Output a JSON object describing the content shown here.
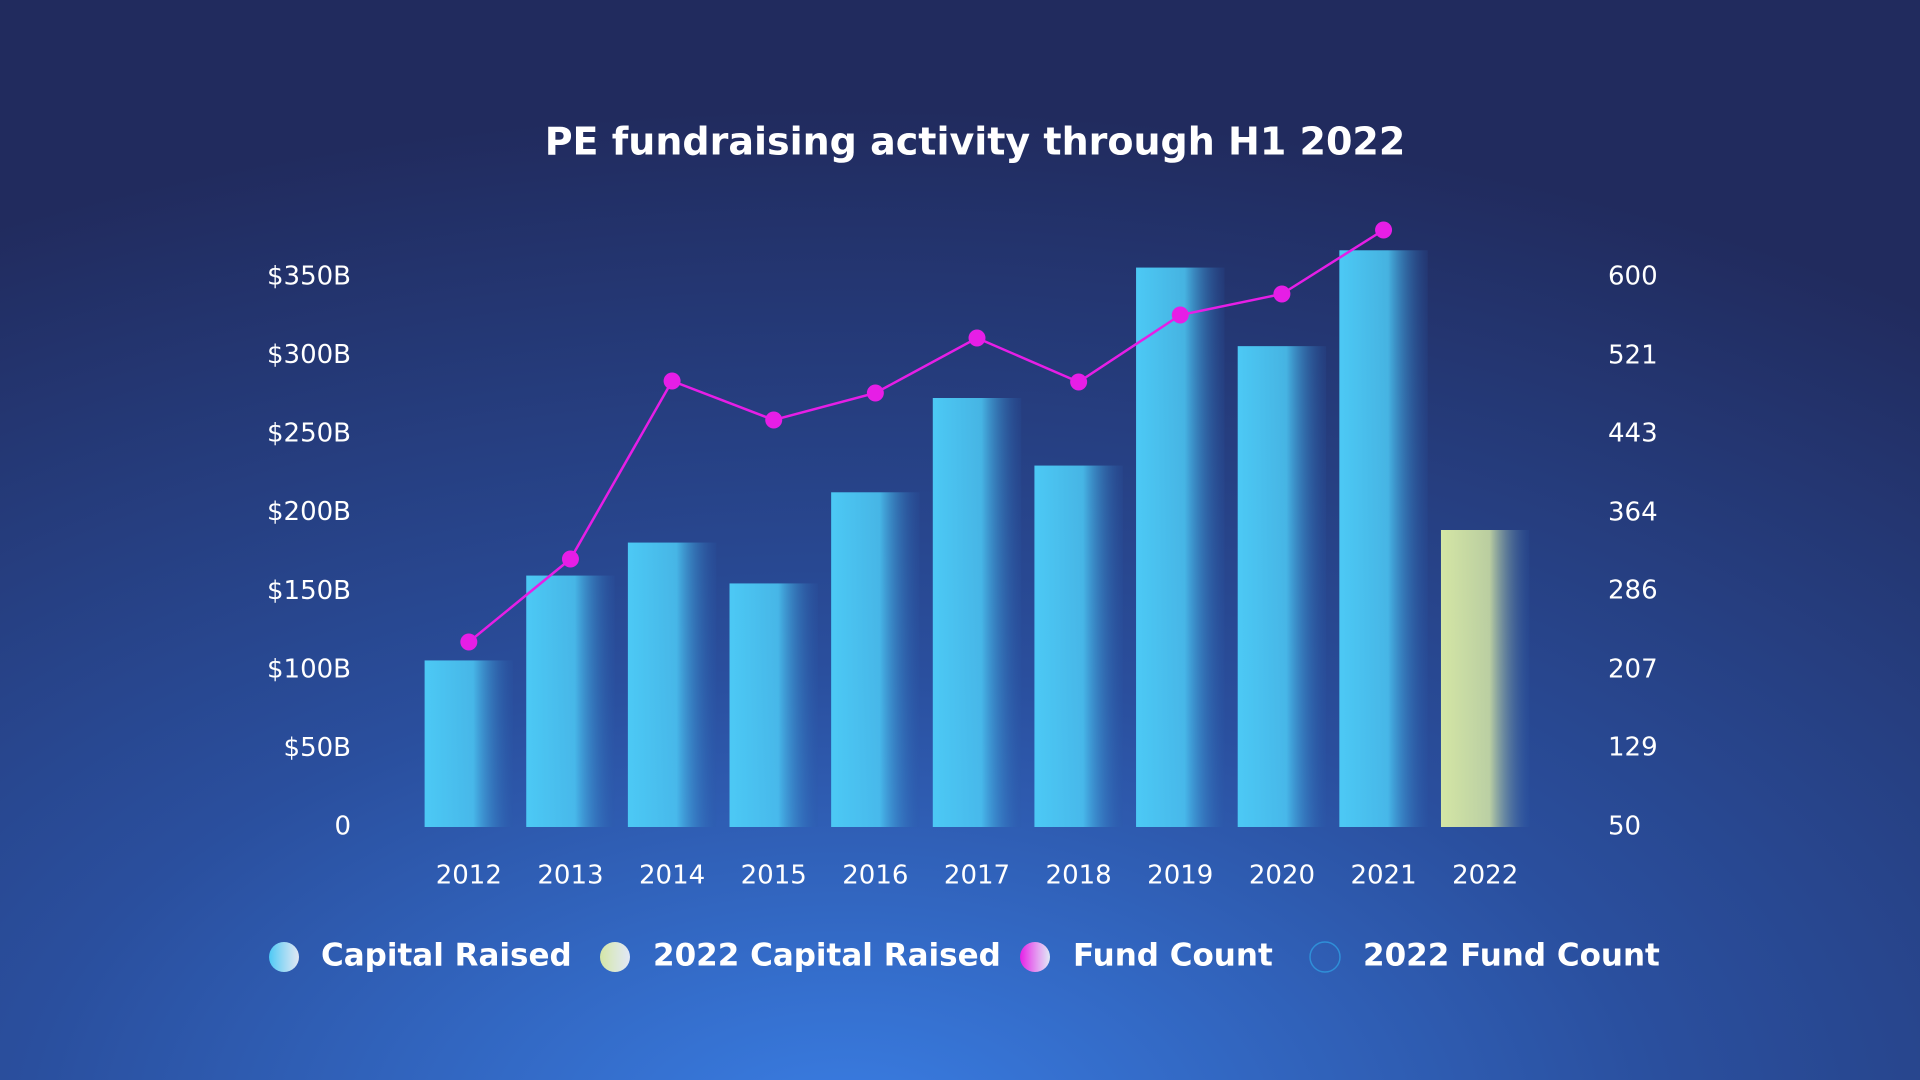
{
  "chart_data": {
    "type": "bar",
    "title": "PE fundraising activity through H1 2022",
    "categories": [
      "2012",
      "2013",
      "2014",
      "2015",
      "2016",
      "2017",
      "2018",
      "2019",
      "2020",
      "2021",
      "2022"
    ],
    "series": [
      {
        "name": "Capital Raised",
        "color": "#4cc9f5",
        "values": [
          106,
          160,
          181,
          155,
          213,
          273,
          230,
          356,
          306,
          367,
          null
        ]
      },
      {
        "name": "2022 Capital Raised",
        "color": "#d4e6a5",
        "values": [
          null,
          null,
          null,
          null,
          null,
          null,
          null,
          null,
          null,
          null,
          189
        ]
      },
      {
        "name": "Fund Count",
        "type": "line",
        "axis": "y2",
        "color": "#e61ee6",
        "values": [
          235,
          318,
          496,
          457,
          484,
          539,
          495,
          562,
          583,
          647,
          null
        ]
      },
      {
        "name": "2022 Fund Count",
        "type": "line",
        "axis": "y2",
        "color": "#2f8fd8",
        "values": [
          null,
          null,
          null,
          null,
          null,
          null,
          null,
          null,
          null,
          null,
          null
        ]
      }
    ],
    "ylim": [
      0,
      350
    ],
    "yticks": [
      0,
      {
        "value": 50,
        "label": "$50B"
      },
      {
        "value": 100,
        "label": "$100B"
      },
      {
        "value": 150,
        "label": "$150B"
      },
      {
        "value": 200,
        "label": "$200B"
      },
      {
        "value": 250,
        "label": "$250B"
      },
      {
        "value": 300,
        "label": "$300B"
      },
      {
        "value": 350,
        "label": "$350B"
      }
    ],
    "y2lim": [
      50,
      600
    ],
    "y2ticks": [
      50,
      129,
      207,
      286,
      364,
      443,
      521,
      600
    ],
    "grid": false,
    "legend": "bottom"
  }
}
